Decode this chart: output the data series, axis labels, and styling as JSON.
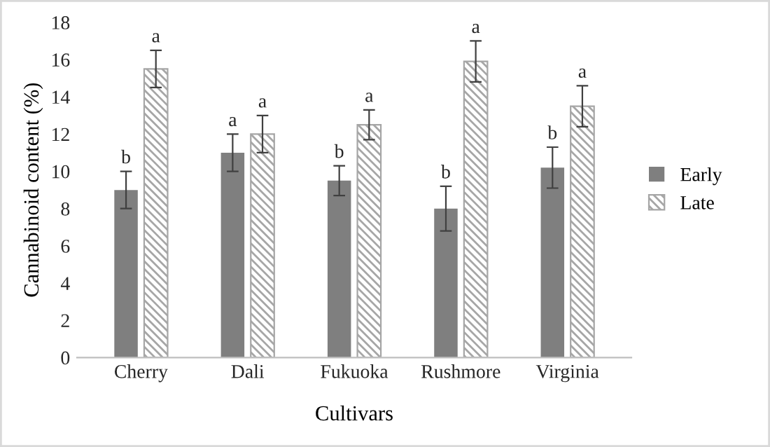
{
  "chart_data": {
    "type": "bar",
    "xlabel": "Cultivars",
    "ylabel": "Cannabinoid content (%)",
    "categories": [
      "Cherry",
      "Dali",
      "Fukuoka",
      "Rushmore",
      "Virginia"
    ],
    "series": [
      {
        "name": "Early",
        "color": "#7f7f7f",
        "values": [
          9,
          11,
          9.5,
          8,
          10.2
        ],
        "errors": [
          1,
          1,
          0.8,
          1.2,
          1.1
        ],
        "value_labels": [
          "b",
          "a",
          "b",
          "b",
          "b"
        ]
      },
      {
        "name": "Late",
        "color": "#a6a6a6",
        "values": [
          15.5,
          12,
          12.5,
          15.9,
          13.5
        ],
        "errors": [
          1,
          1,
          0.8,
          1.1,
          1.1
        ],
        "value_labels": [
          "a",
          "a",
          "a",
          "a",
          "a"
        ]
      }
    ],
    "ylim": [
      0,
      18
    ],
    "yticks": [
      0,
      2,
      4,
      6,
      8,
      10,
      12,
      14,
      16,
      18
    ],
    "grid": false,
    "legend": "right"
  }
}
